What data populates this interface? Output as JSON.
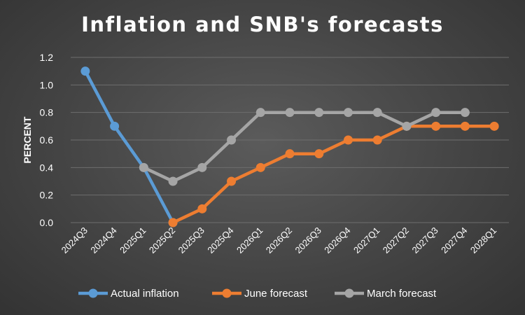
{
  "chart_data": {
    "type": "line",
    "title": "Inflation and SNB's forecasts",
    "xlabel": "",
    "ylabel": "PERCENT",
    "ylim": [
      0,
      1.2
    ],
    "yticks": [
      "0.0",
      "0.2",
      "0.4",
      "0.6",
      "0.8",
      "1.0",
      "1.2"
    ],
    "categories": [
      "2024Q3",
      "2024Q4",
      "2025Q1",
      "2025Q2",
      "2025Q3",
      "2025Q4",
      "2026Q1",
      "2026Q2",
      "2026Q3",
      "2026Q4",
      "2027Q1",
      "2027Q2",
      "2027Q3",
      "2027Q4",
      "2028Q1"
    ],
    "grid": true,
    "legend_position": "bottom",
    "series": [
      {
        "name": "Actual inflation",
        "color": "#5B9BD5",
        "values": [
          1.1,
          0.7,
          0.4,
          0.0,
          null,
          null,
          null,
          null,
          null,
          null,
          null,
          null,
          null,
          null,
          null
        ]
      },
      {
        "name": "June forecast",
        "color": "#ED7D31",
        "values": [
          null,
          null,
          null,
          0.0,
          0.1,
          0.3,
          0.4,
          0.5,
          0.5,
          0.6,
          0.6,
          0.7,
          0.7,
          0.7,
          0.7
        ]
      },
      {
        "name": "March forecast",
        "color": "#A5A5A5",
        "values": [
          null,
          null,
          0.4,
          0.3,
          0.4,
          0.6,
          0.8,
          0.8,
          0.8,
          0.8,
          0.8,
          0.7,
          0.8,
          0.8,
          null
        ]
      }
    ]
  }
}
